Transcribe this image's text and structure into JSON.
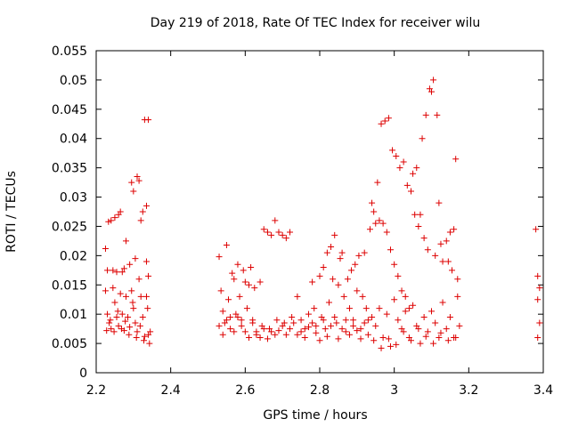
{
  "chart_data": {
    "type": "scatter",
    "title": "Day 219 of 2018, Rate Of TEC Index for receiver wilu",
    "xlabel": "GPS time / hours",
    "ylabel": "ROTI / TECUs",
    "xlim": [
      2.2,
      3.4
    ],
    "ylim": [
      0,
      0.055
    ],
    "xticks": [
      "2.2",
      "2.4",
      "2.6",
      "2.8",
      "3",
      "3.2",
      "3.4"
    ],
    "yticks": [
      "0",
      "0.005",
      "0.01",
      "0.015",
      "0.02",
      "0.025",
      "0.03",
      "0.035",
      "0.04",
      "0.045",
      "0.05",
      "0.055"
    ],
    "marker": "+",
    "colors": {
      "marker": "#dd0000",
      "axis": "#000000"
    },
    "series": [
      {
        "name": "ROTI",
        "points": [
          [
            2.225,
            0.0212
          ],
          [
            2.23,
            0.0175
          ],
          [
            2.233,
            0.0258
          ],
          [
            2.24,
            0.026
          ],
          [
            2.245,
            0.0175
          ],
          [
            2.25,
            0.0265
          ],
          [
            2.255,
            0.0172
          ],
          [
            2.26,
            0.027
          ],
          [
            2.265,
            0.0275
          ],
          [
            2.27,
            0.0172
          ],
          [
            2.275,
            0.0178
          ],
          [
            2.28,
            0.0225
          ],
          [
            2.29,
            0.0185
          ],
          [
            2.295,
            0.0325
          ],
          [
            2.3,
            0.031
          ],
          [
            2.305,
            0.0195
          ],
          [
            2.31,
            0.0335
          ],
          [
            2.315,
            0.0328
          ],
          [
            2.32,
            0.026
          ],
          [
            2.325,
            0.0275
          ],
          [
            2.33,
            0.0432
          ],
          [
            2.335,
            0.0285
          ],
          [
            2.34,
            0.0432
          ],
          [
            2.335,
            0.019
          ],
          [
            2.34,
            0.0165
          ],
          [
            2.225,
            0.014
          ],
          [
            2.23,
            0.01
          ],
          [
            2.235,
            0.0085
          ],
          [
            2.24,
            0.0075
          ],
          [
            2.245,
            0.0145
          ],
          [
            2.25,
            0.012
          ],
          [
            2.255,
            0.0095
          ],
          [
            2.26,
            0.008
          ],
          [
            2.265,
            0.0135
          ],
          [
            2.27,
            0.01
          ],
          [
            2.275,
            0.0072
          ],
          [
            2.28,
            0.013
          ],
          [
            2.285,
            0.0095
          ],
          [
            2.29,
            0.0078
          ],
          [
            2.295,
            0.014
          ],
          [
            2.3,
            0.011
          ],
          [
            2.305,
            0.0085
          ],
          [
            2.31,
            0.007
          ],
          [
            2.315,
            0.016
          ],
          [
            2.32,
            0.013
          ],
          [
            2.325,
            0.0095
          ],
          [
            2.33,
            0.0062
          ],
          [
            2.335,
            0.013
          ],
          [
            2.34,
            0.0065
          ],
          [
            2.345,
            0.007
          ],
          [
            2.228,
            0.0072
          ],
          [
            2.238,
            0.009
          ],
          [
            2.248,
            0.007
          ],
          [
            2.258,
            0.0105
          ],
          [
            2.268,
            0.0075
          ],
          [
            2.278,
            0.0088
          ],
          [
            2.288,
            0.0065
          ],
          [
            2.298,
            0.012
          ],
          [
            2.308,
            0.006
          ],
          [
            2.318,
            0.008
          ],
          [
            2.328,
            0.0055
          ],
          [
            2.338,
            0.011
          ],
          [
            2.343,
            0.005
          ],
          [
            2.53,
            0.0198
          ],
          [
            2.535,
            0.014
          ],
          [
            2.54,
            0.0105
          ],
          [
            2.545,
            0.0085
          ],
          [
            2.55,
            0.0218
          ],
          [
            2.555,
            0.0125
          ],
          [
            2.56,
            0.0095
          ],
          [
            2.565,
            0.017
          ],
          [
            2.57,
            0.016
          ],
          [
            2.575,
            0.01
          ],
          [
            2.58,
            0.0185
          ],
          [
            2.585,
            0.013
          ],
          [
            2.59,
            0.009
          ],
          [
            2.595,
            0.0175
          ],
          [
            2.6,
            0.0155
          ],
          [
            2.605,
            0.011
          ],
          [
            2.61,
            0.015
          ],
          [
            2.615,
            0.018
          ],
          [
            2.62,
            0.009
          ],
          [
            2.625,
            0.0145
          ],
          [
            2.63,
            0.007
          ],
          [
            2.64,
            0.0155
          ],
          [
            2.645,
            0.008
          ],
          [
            2.65,
            0.0245
          ],
          [
            2.66,
            0.024
          ],
          [
            2.665,
            0.0075
          ],
          [
            2.67,
            0.0235
          ],
          [
            2.68,
            0.026
          ],
          [
            2.685,
            0.009
          ],
          [
            2.69,
            0.024
          ],
          [
            2.7,
            0.0235
          ],
          [
            2.705,
            0.0085
          ],
          [
            2.71,
            0.023
          ],
          [
            2.72,
            0.024
          ],
          [
            2.725,
            0.0095
          ],
          [
            2.53,
            0.008
          ],
          [
            2.54,
            0.0065
          ],
          [
            2.55,
            0.009
          ],
          [
            2.56,
            0.0075
          ],
          [
            2.57,
            0.007
          ],
          [
            2.58,
            0.0095
          ],
          [
            2.59,
            0.008
          ],
          [
            2.6,
            0.007
          ],
          [
            2.61,
            0.006
          ],
          [
            2.62,
            0.0085
          ],
          [
            2.63,
            0.0065
          ],
          [
            2.64,
            0.006
          ],
          [
            2.65,
            0.0075
          ],
          [
            2.66,
            0.0058
          ],
          [
            2.67,
            0.007
          ],
          [
            2.68,
            0.0065
          ],
          [
            2.69,
            0.0072
          ],
          [
            2.7,
            0.008
          ],
          [
            2.71,
            0.0065
          ],
          [
            2.72,
            0.0075
          ],
          [
            2.73,
            0.0085
          ],
          [
            2.74,
            0.013
          ],
          [
            2.75,
            0.009
          ],
          [
            2.76,
            0.0075
          ],
          [
            2.77,
            0.01
          ],
          [
            2.78,
            0.0155
          ],
          [
            2.785,
            0.011
          ],
          [
            2.79,
            0.008
          ],
          [
            2.8,
            0.0165
          ],
          [
            2.805,
            0.0095
          ],
          [
            2.81,
            0.018
          ],
          [
            2.815,
            0.0075
          ],
          [
            2.82,
            0.0205
          ],
          [
            2.825,
            0.012
          ],
          [
            2.83,
            0.0215
          ],
          [
            2.835,
            0.016
          ],
          [
            2.84,
            0.0235
          ],
          [
            2.845,
            0.0085
          ],
          [
            2.85,
            0.015
          ],
          [
            2.855,
            0.0195
          ],
          [
            2.86,
            0.0205
          ],
          [
            2.865,
            0.013
          ],
          [
            2.87,
            0.007
          ],
          [
            2.875,
            0.016
          ],
          [
            2.88,
            0.011
          ],
          [
            2.885,
            0.0175
          ],
          [
            2.89,
            0.009
          ],
          [
            2.895,
            0.0185
          ],
          [
            2.9,
            0.014
          ],
          [
            2.905,
            0.02
          ],
          [
            2.91,
            0.0075
          ],
          [
            2.915,
            0.013
          ],
          [
            2.92,
            0.0205
          ],
          [
            2.925,
            0.011
          ],
          [
            2.93,
            0.0065
          ],
          [
            2.74,
            0.0065
          ],
          [
            2.75,
            0.007
          ],
          [
            2.76,
            0.006
          ],
          [
            2.77,
            0.0078
          ],
          [
            2.78,
            0.0085
          ],
          [
            2.79,
            0.0068
          ],
          [
            2.8,
            0.0055
          ],
          [
            2.81,
            0.009
          ],
          [
            2.82,
            0.0062
          ],
          [
            2.83,
            0.008
          ],
          [
            2.84,
            0.0095
          ],
          [
            2.85,
            0.0058
          ],
          [
            2.86,
            0.0075
          ],
          [
            2.87,
            0.009
          ],
          [
            2.88,
            0.0065
          ],
          [
            2.89,
            0.008
          ],
          [
            2.9,
            0.0072
          ],
          [
            2.91,
            0.0058
          ],
          [
            2.92,
            0.0085
          ],
          [
            2.93,
            0.009
          ],
          [
            2.935,
            0.0245
          ],
          [
            2.94,
            0.029
          ],
          [
            2.945,
            0.0275
          ],
          [
            2.95,
            0.0255
          ],
          [
            2.955,
            0.0325
          ],
          [
            2.96,
            0.026
          ],
          [
            2.965,
            0.0425
          ],
          [
            2.97,
            0.0255
          ],
          [
            2.975,
            0.043
          ],
          [
            2.98,
            0.024
          ],
          [
            2.985,
            0.0435
          ],
          [
            2.99,
            0.021
          ],
          [
            2.995,
            0.038
          ],
          [
            3.0,
            0.0185
          ],
          [
            3.005,
            0.037
          ],
          [
            3.01,
            0.0165
          ],
          [
            3.015,
            0.035
          ],
          [
            3.02,
            0.014
          ],
          [
            3.025,
            0.036
          ],
          [
            3.03,
            0.013
          ],
          [
            3.035,
            0.032
          ],
          [
            3.04,
            0.011
          ],
          [
            3.045,
            0.031
          ],
          [
            3.05,
            0.034
          ],
          [
            3.055,
            0.027
          ],
          [
            3.06,
            0.035
          ],
          [
            3.065,
            0.025
          ],
          [
            3.07,
            0.027
          ],
          [
            3.075,
            0.04
          ],
          [
            3.08,
            0.023
          ],
          [
            3.085,
            0.044
          ],
          [
            3.09,
            0.021
          ],
          [
            3.095,
            0.0485
          ],
          [
            3.1,
            0.048
          ],
          [
            3.105,
            0.05
          ],
          [
            3.11,
            0.02
          ],
          [
            3.115,
            0.044
          ],
          [
            3.12,
            0.029
          ],
          [
            3.125,
            0.022
          ],
          [
            3.13,
            0.019
          ],
          [
            3.14,
            0.0225
          ],
          [
            3.145,
            0.019
          ],
          [
            3.15,
            0.024
          ],
          [
            3.155,
            0.0175
          ],
          [
            3.16,
            0.0245
          ],
          [
            3.165,
            0.0365
          ],
          [
            3.17,
            0.016
          ],
          [
            2.94,
            0.0095
          ],
          [
            2.95,
            0.008
          ],
          [
            2.96,
            0.011
          ],
          [
            2.97,
            0.006
          ],
          [
            2.98,
            0.01
          ],
          [
            2.99,
            0.0045
          ],
          [
            3.0,
            0.0125
          ],
          [
            3.01,
            0.009
          ],
          [
            3.02,
            0.0075
          ],
          [
            3.03,
            0.0105
          ],
          [
            3.04,
            0.006
          ],
          [
            3.05,
            0.0115
          ],
          [
            3.06,
            0.008
          ],
          [
            3.07,
            0.005
          ],
          [
            3.08,
            0.0095
          ],
          [
            3.09,
            0.007
          ],
          [
            3.1,
            0.0105
          ],
          [
            3.11,
            0.0085
          ],
          [
            3.12,
            0.006
          ],
          [
            3.13,
            0.012
          ],
          [
            3.14,
            0.0075
          ],
          [
            3.15,
            0.0095
          ],
          [
            3.16,
            0.006
          ],
          [
            3.17,
            0.013
          ],
          [
            3.175,
            0.008
          ],
          [
            2.945,
            0.0055
          ],
          [
            2.965,
            0.0042
          ],
          [
            2.985,
            0.0058
          ],
          [
            3.005,
            0.0048
          ],
          [
            3.025,
            0.007
          ],
          [
            3.045,
            0.0055
          ],
          [
            3.065,
            0.0075
          ],
          [
            3.085,
            0.0062
          ],
          [
            3.105,
            0.005
          ],
          [
            3.125,
            0.0068
          ],
          [
            3.145,
            0.0055
          ],
          [
            3.165,
            0.006
          ],
          [
            3.38,
            0.0245
          ],
          [
            3.385,
            0.0165
          ],
          [
            3.39,
            0.0145
          ],
          [
            3.385,
            0.0125
          ],
          [
            3.39,
            0.0085
          ],
          [
            3.385,
            0.006
          ]
        ]
      }
    ]
  }
}
